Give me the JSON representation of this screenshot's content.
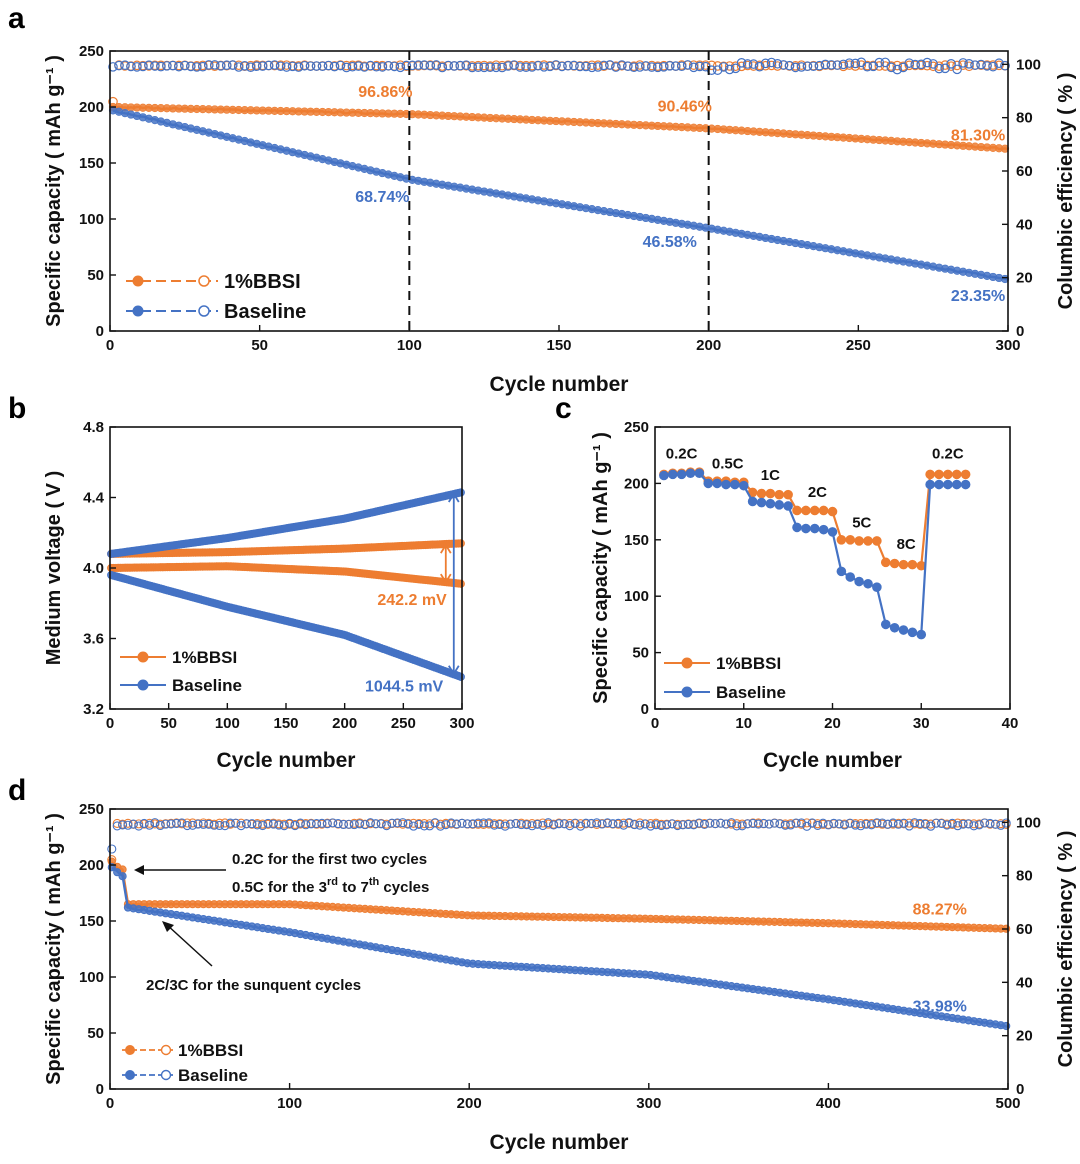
{
  "colors": {
    "orange": "#ED7D31",
    "blue": "#4472C4",
    "axis": "#111111"
  },
  "chart_data": [
    {
      "panel": "a",
      "type": "scatter",
      "xlabel": "Cycle number",
      "ylabel": "Specific capacity ( mAh g⁻¹ )",
      "y2label": "Columbic efficiency ( % )",
      "xlim": [
        0,
        300
      ],
      "ylim": [
        0,
        250
      ],
      "y2lim": [
        0,
        105
      ],
      "xticks": [
        0,
        50,
        100,
        150,
        200,
        250,
        300
      ],
      "yticks": [
        0,
        50,
        100,
        150,
        200,
        250
      ],
      "y2ticks": [
        0,
        20,
        40,
        60,
        80,
        100
      ],
      "vlines": [
        100,
        200
      ],
      "series": [
        {
          "name": "1%BBSI",
          "key": "orange",
          "capacity": {
            "x": [
              1,
              100,
              200,
              300
            ],
            "y": [
              200,
              193.7,
              180.9,
              162.6
            ]
          },
          "ce": 99.5
        },
        {
          "name": "Baseline",
          "key": "blue",
          "capacity": {
            "x": [
              1,
              100,
              200,
              300
            ],
            "y": [
              197,
              135.4,
              91.8,
              46.0
            ]
          },
          "ce": 99.3
        }
      ],
      "annotations": [
        {
          "text": "96.86%",
          "key": "orange",
          "x": 92,
          "y": 209
        },
        {
          "text": "90.46%",
          "key": "orange",
          "x": 192,
          "y": 196
        },
        {
          "text": "81.30%",
          "key": "orange",
          "x": 290,
          "y": 170
        },
        {
          "text": "68.74%",
          "key": "blue",
          "x": 91,
          "y": 115
        },
        {
          "text": "46.58%",
          "key": "blue",
          "x": 187,
          "y": 75
        },
        {
          "text": "23.35%",
          "key": "blue",
          "x": 290,
          "y": 27
        }
      ]
    },
    {
      "panel": "b",
      "type": "scatter",
      "xlabel": "Cycle number",
      "ylabel": "Medium voltage ( V )",
      "xlim": [
        0,
        300
      ],
      "ylim": [
        3.2,
        4.8
      ],
      "xticks": [
        0,
        50,
        100,
        150,
        200,
        250,
        300
      ],
      "yticks": [
        3.2,
        3.6,
        4.0,
        4.4,
        4.8
      ],
      "series": [
        {
          "name": "1%BBSI charge",
          "key": "orange",
          "x": [
            1,
            100,
            200,
            300
          ],
          "y": [
            4.08,
            4.09,
            4.11,
            4.14
          ]
        },
        {
          "name": "1%BBSI discharge",
          "key": "orange",
          "x": [
            1,
            100,
            200,
            300
          ],
          "y": [
            4.0,
            4.01,
            3.98,
            3.91
          ]
        },
        {
          "name": "Baseline charge",
          "key": "blue",
          "x": [
            1,
            100,
            200,
            300
          ],
          "y": [
            4.08,
            4.17,
            4.28,
            4.43
          ]
        },
        {
          "name": "Baseline discharge",
          "key": "blue",
          "x": [
            1,
            100,
            200,
            300
          ],
          "y": [
            3.96,
            3.78,
            3.62,
            3.38
          ]
        }
      ],
      "legend": [
        "1%BBSI",
        "Baseline"
      ],
      "annotations": [
        {
          "text": "242.2 mV",
          "key": "orange",
          "x": 287,
          "y": 3.79
        },
        {
          "text": "1044.5 mV",
          "key": "blue",
          "x": 284,
          "y": 3.3
        }
      ]
    },
    {
      "panel": "c",
      "type": "line",
      "xlabel": "Cycle number",
      "ylabel": "Specific capacity ( mAh g⁻¹ )",
      "xlim": [
        0,
        40
      ],
      "ylim": [
        0,
        250
      ],
      "xticks": [
        0,
        10,
        20,
        30,
        40
      ],
      "yticks": [
        0,
        50,
        100,
        150,
        200,
        250
      ],
      "x": [
        1,
        2,
        3,
        4,
        5,
        6,
        7,
        8,
        9,
        10,
        11,
        12,
        13,
        14,
        15,
        16,
        17,
        18,
        19,
        20,
        21,
        22,
        23,
        24,
        25,
        26,
        27,
        28,
        29,
        30,
        31,
        32,
        33,
        34,
        35
      ],
      "series": [
        {
          "name": "1%BBSI",
          "key": "orange",
          "values": [
            208,
            209,
            209,
            210,
            210,
            202,
            202,
            202,
            201,
            201,
            192,
            191,
            191,
            190,
            190,
            176,
            176,
            176,
            176,
            175,
            150,
            150,
            149,
            149,
            149,
            130,
            129,
            128,
            128,
            127,
            208,
            208,
            208,
            208,
            208
          ]
        },
        {
          "name": "Baseline",
          "key": "blue",
          "values": [
            207,
            208,
            208,
            209,
            209,
            200,
            200,
            199,
            199,
            198,
            184,
            183,
            182,
            181,
            180,
            161,
            160,
            160,
            159,
            157,
            122,
            117,
            113,
            111,
            108,
            75,
            72,
            70,
            68,
            66,
            199,
            199,
            199,
            199,
            199
          ]
        }
      ],
      "rate_labels": [
        {
          "text": "0.2C",
          "x": 3.0,
          "y": 222
        },
        {
          "text": "0.5C",
          "x": 8.2,
          "y": 213
        },
        {
          "text": "1C",
          "x": 13.0,
          "y": 203
        },
        {
          "text": "2C",
          "x": 18.3,
          "y": 188
        },
        {
          "text": "5C",
          "x": 23.3,
          "y": 161
        },
        {
          "text": "8C",
          "x": 28.3,
          "y": 142
        },
        {
          "text": "0.2C",
          "x": 33.0,
          "y": 222
        }
      ]
    },
    {
      "panel": "d",
      "type": "scatter",
      "xlabel": "Cycle number",
      "ylabel": "Specific capacity ( mAh g⁻¹ )",
      "y2label": "Columbic efficiency ( % )",
      "xlim": [
        0,
        500
      ],
      "ylim": [
        0,
        250
      ],
      "y2lim": [
        0,
        105
      ],
      "xticks": [
        0,
        100,
        200,
        300,
        400,
        500
      ],
      "yticks": [
        0,
        50,
        100,
        150,
        200,
        250
      ],
      "y2ticks": [
        0,
        20,
        40,
        60,
        80,
        100
      ],
      "series": [
        {
          "name": "1%BBSI",
          "key": "orange",
          "capacity": {
            "x": [
              1,
              2,
              7,
              10,
              100,
              200,
              300,
              400,
              500
            ],
            "y": [
              203,
              200,
              196,
              165,
              165,
              155,
              152,
              148,
              143
            ]
          },
          "ce": 99.5
        },
        {
          "name": "Baseline",
          "key": "blue",
          "capacity": {
            "x": [
              1,
              2,
              7,
              10,
              100,
              200,
              300,
              400,
              500
            ],
            "y": [
              198,
              196,
              190,
              162,
              140,
              112,
              102,
              80,
              56
            ]
          },
          "ce": 99.2
        }
      ],
      "annotations": [
        {
          "text": "88.27%",
          "key": "orange",
          "x": 462,
          "y": 156
        },
        {
          "text": "33.98%",
          "key": "blue",
          "x": 462,
          "y": 69
        }
      ],
      "notes": {
        "line1": "0.2C for the first two cycles",
        "line2_pre": "0.5C for the 3",
        "line2_sup1": "rd",
        "line2_mid": " to 7",
        "line2_sup2": "th",
        "line2_post": " cycles",
        "line3": "2C/3C for the sunquent cycles"
      }
    }
  ],
  "panel_letters": [
    "a",
    "b",
    "c",
    "d"
  ]
}
